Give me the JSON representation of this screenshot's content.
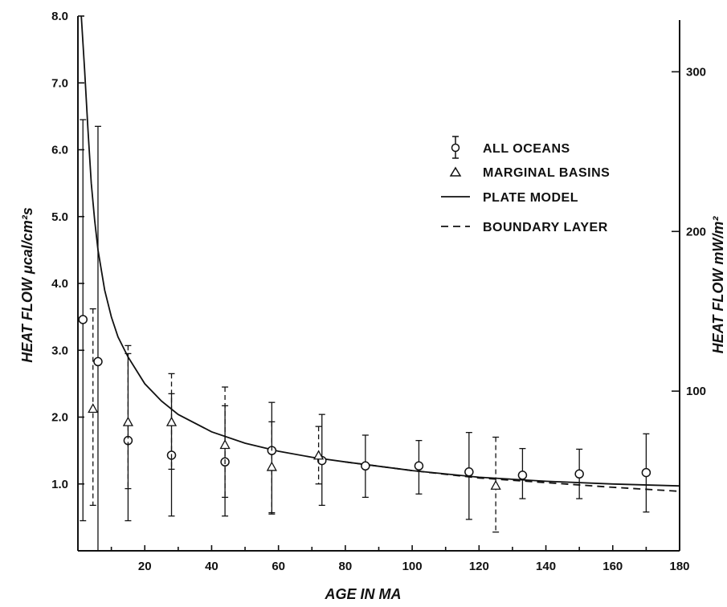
{
  "chart_data": {
    "type": "scatter",
    "xlabel": "AGE IN MA",
    "ylabel_left": "HEAT FLOW μcal/cm²s",
    "ylabel_right": "HEAT FLOW mW/m²",
    "xlim": [
      0,
      180
    ],
    "ylim": [
      0,
      8.0
    ],
    "ylim_right_mW": [
      0,
      334.9
    ],
    "x_ticks": [
      20,
      40,
      60,
      80,
      100,
      120,
      140,
      160,
      180
    ],
    "y_ticks": [
      1.0,
      2.0,
      3.0,
      4.0,
      5.0,
      6.0,
      7.0,
      8.0
    ],
    "y_tick_labels": [
      "1.0",
      "2.0",
      "3.0",
      "4.0",
      "5.0",
      "6.0",
      "7.0",
      "8.0"
    ],
    "y_right_ticks": [
      100,
      200,
      300
    ],
    "grid": false,
    "legend_position": "top-right",
    "legend": [
      {
        "label": "ALL OCEANS",
        "marker": "circle-with-errorbar"
      },
      {
        "label": "MARGINAL BASINS",
        "marker": "triangle"
      },
      {
        "label": "PLATE MODEL",
        "style": "solid"
      },
      {
        "label": "BOUNDARY LAYER",
        "style": "dashed"
      }
    ],
    "series": [
      {
        "name": "ALL OCEANS",
        "kind": "points",
        "marker": "circle",
        "x": [
          1.5,
          6,
          15,
          28,
          44,
          58,
          73,
          86,
          102,
          117,
          133,
          150,
          170
        ],
        "y": [
          3.46,
          2.83,
          1.65,
          1.43,
          1.33,
          1.5,
          1.35,
          1.27,
          1.27,
          1.18,
          1.13,
          1.15,
          1.17
        ],
        "ylow": [
          0.45,
          0,
          0.45,
          0.52,
          0.52,
          0.57,
          0.68,
          0.8,
          0.85,
          0.47,
          0.78,
          0.78,
          0.58
        ],
        "yhigh": [
          6.45,
          6.35,
          2.95,
          2.35,
          2.17,
          2.22,
          2.04,
          1.73,
          1.65,
          1.77,
          1.53,
          1.52,
          1.75
        ]
      },
      {
        "name": "MARGINAL BASINS",
        "kind": "points",
        "marker": "triangle",
        "x": [
          4.5,
          15,
          28,
          44,
          58,
          72,
          125
        ],
        "y": [
          2.12,
          1.92,
          1.92,
          1.58,
          1.25,
          1.42,
          0.97
        ],
        "ylow": [
          0.68,
          0.93,
          1.22,
          0.8,
          0.55,
          1.0,
          0.28
        ],
        "yhigh": [
          3.62,
          3.07,
          2.65,
          2.45,
          1.93,
          1.86,
          1.7
        ]
      },
      {
        "name": "PLATE MODEL",
        "kind": "line",
        "style": "solid",
        "x": [
          1.0,
          2,
          3,
          4,
          5,
          6,
          8,
          10,
          12,
          15,
          20,
          25,
          30,
          40,
          50,
          60,
          70,
          80,
          100,
          120,
          140,
          160,
          180
        ],
        "y": [
          8.0,
          7.2,
          6.3,
          5.5,
          4.95,
          4.5,
          3.9,
          3.5,
          3.2,
          2.9,
          2.5,
          2.24,
          2.04,
          1.78,
          1.61,
          1.49,
          1.4,
          1.33,
          1.2,
          1.1,
          1.04,
          1.0,
          0.97
        ]
      },
      {
        "name": "BOUNDARY LAYER",
        "kind": "line",
        "style": "dashed",
        "x": [
          80,
          100,
          120,
          140,
          160,
          180
        ],
        "y": [
          1.33,
          1.2,
          1.09,
          1.02,
          0.95,
          0.89
        ]
      }
    ]
  }
}
